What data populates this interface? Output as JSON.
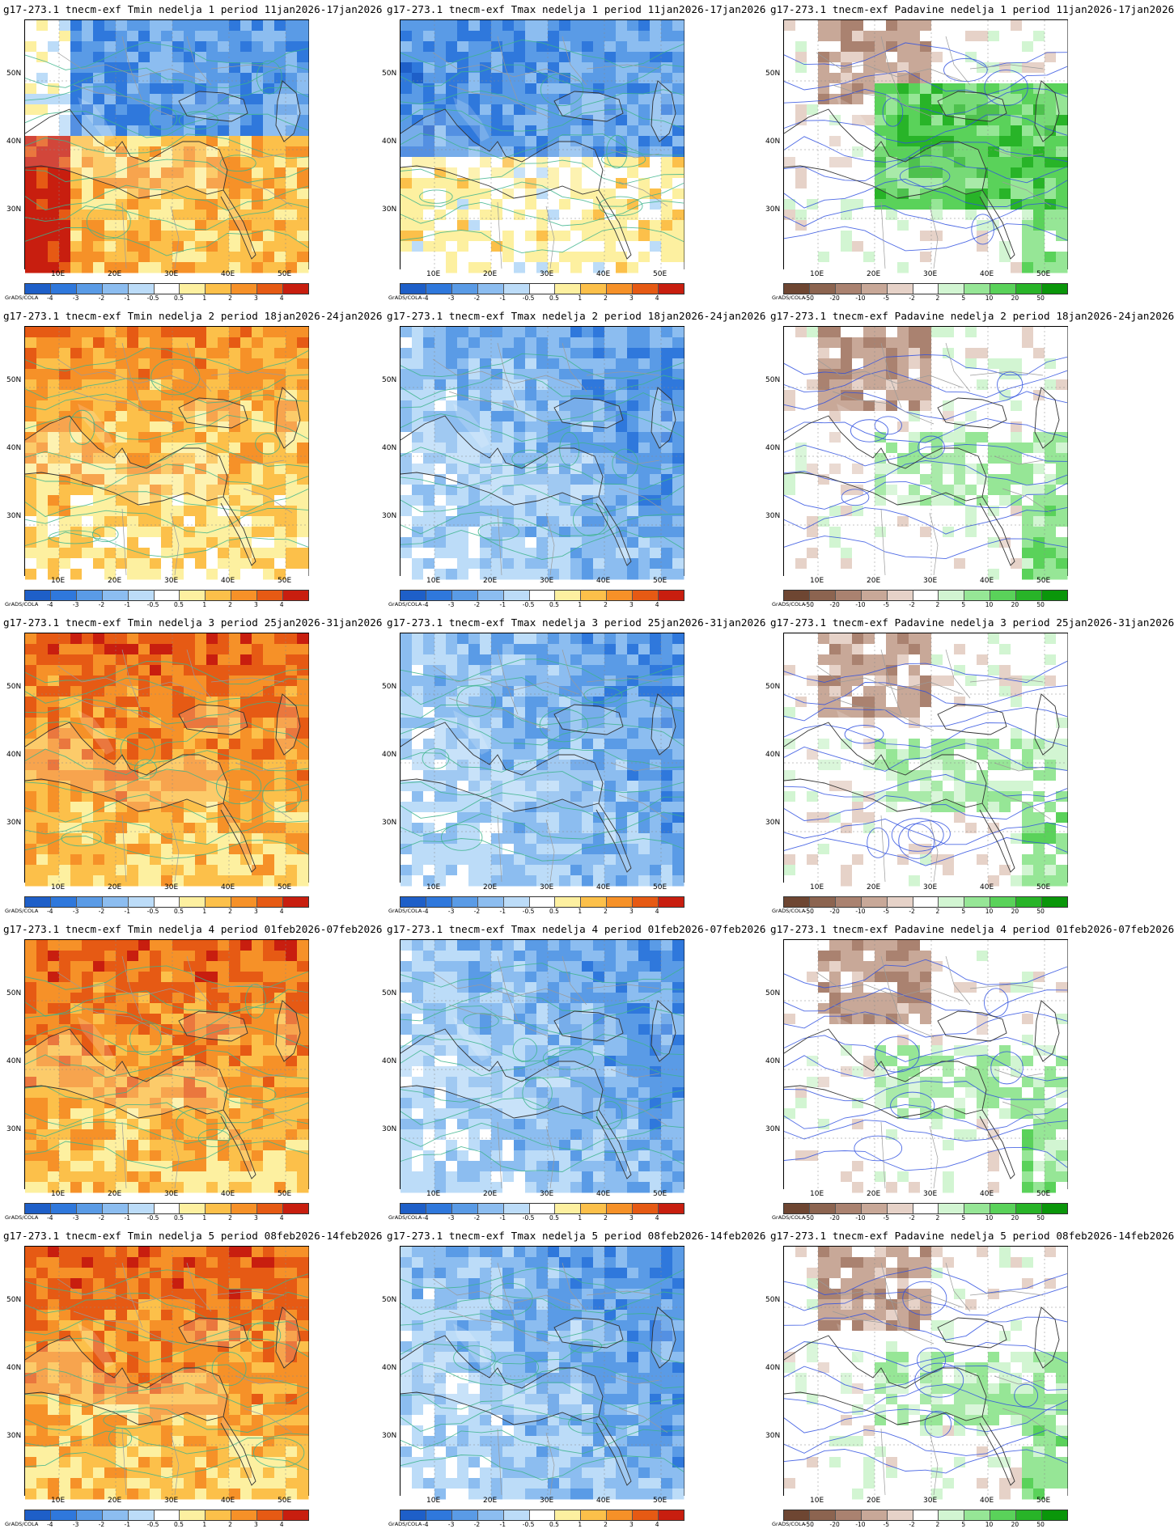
{
  "title_prefix": "g17-273.1 tnecm-exf",
  "credit": "GrADS/COLA",
  "variables": [
    "Tmin",
    "Tmax",
    "Padavine"
  ],
  "weeks": [
    {
      "nedelja": "1",
      "period": "11jan2026-17jan2026"
    },
    {
      "nedelja": "2",
      "period": "18jan2026-24jan2026"
    },
    {
      "nedelja": "3",
      "period": "25jan2026-31jan2026"
    },
    {
      "nedelja": "4",
      "period": "01feb2026-07feb2026"
    },
    {
      "nedelja": "5",
      "period": "08feb2026-14feb2026"
    }
  ],
  "panel_titles": [
    [
      "g17-273.1 tnecm-exf Tmin nedelja 1 period 11jan2026-17jan2026",
      "g17-273.1 tnecm-exf Tmax nedelja 1 period 11jan2026-17jan2026",
      "g17-273.1 tnecm-exf Padavine nedelja 1 period 11jan2026-17jan2026"
    ],
    [
      "g17-273.1 tnecm-exf Tmin nedelja 2 period 18jan2026-24jan2026",
      "g17-273.1 tnecm-exf Tmax nedelja 2 period 18jan2026-24jan2026",
      "g17-273.1 tnecm-exf Padavine nedelja 2 period 18jan2026-24jan2026"
    ],
    [
      "g17-273.1 tnecm-exf Tmin nedelja 3 period 25jan2026-31jan2026",
      "g17-273.1 tnecm-exf Tmax nedelja 3 period 25jan2026-31jan2026",
      "g17-273.1 tnecm-exf Padavine nedelja 3 period 25jan2026-31jan2026"
    ],
    [
      "g17-273.1 tnecm-exf Tmin nedelja 4 period 01feb2026-07feb2026",
      "g17-273.1 tnecm-exf Tmax nedelja 4 period 01feb2026-07feb2026",
      "g17-273.1 tnecm-exf Padavine nedelja 4 period 01feb2026-07feb2026"
    ],
    [
      "g17-273.1 tnecm-exf Tmin nedelja 5 period 08feb2026-14feb2026",
      "g17-273.1 tnecm-exf Tmax nedelja 5 period 08feb2026-14feb2026",
      "g17-273.1 tnecm-exf Padavine nedelja 5 period 08feb2026-14feb2026"
    ]
  ],
  "lat_labels": [
    "50N",
    "40N",
    "30N"
  ],
  "lon_labels": [
    "10E",
    "20E",
    "30E",
    "40E",
    "50E"
  ],
  "temp_colorbar": {
    "labels": [
      "-4",
      "-3",
      "-2",
      "-1",
      "-0.5",
      "0.5",
      "1",
      "2",
      "3",
      "4"
    ],
    "colors": [
      "#1e5fc8",
      "#2f78dc",
      "#5a9be6",
      "#8cbdf0",
      "#bcdcf8",
      "#ffffff",
      "#fdf0a0",
      "#fcc04a",
      "#f69128",
      "#e65a14",
      "#c81e0f"
    ]
  },
  "precip_colorbar": {
    "labels": [
      "-50",
      "-20",
      "-10",
      "-5",
      "-2",
      "2",
      "5",
      "10",
      "20",
      "50"
    ],
    "colors": [
      "#6e4632",
      "#8c6450",
      "#aa8270",
      "#c8a898",
      "#e6d2c8",
      "#ffffff",
      "#d2f5d2",
      "#96e696",
      "#5ad25a",
      "#28b428",
      "#0a960a"
    ]
  }
}
